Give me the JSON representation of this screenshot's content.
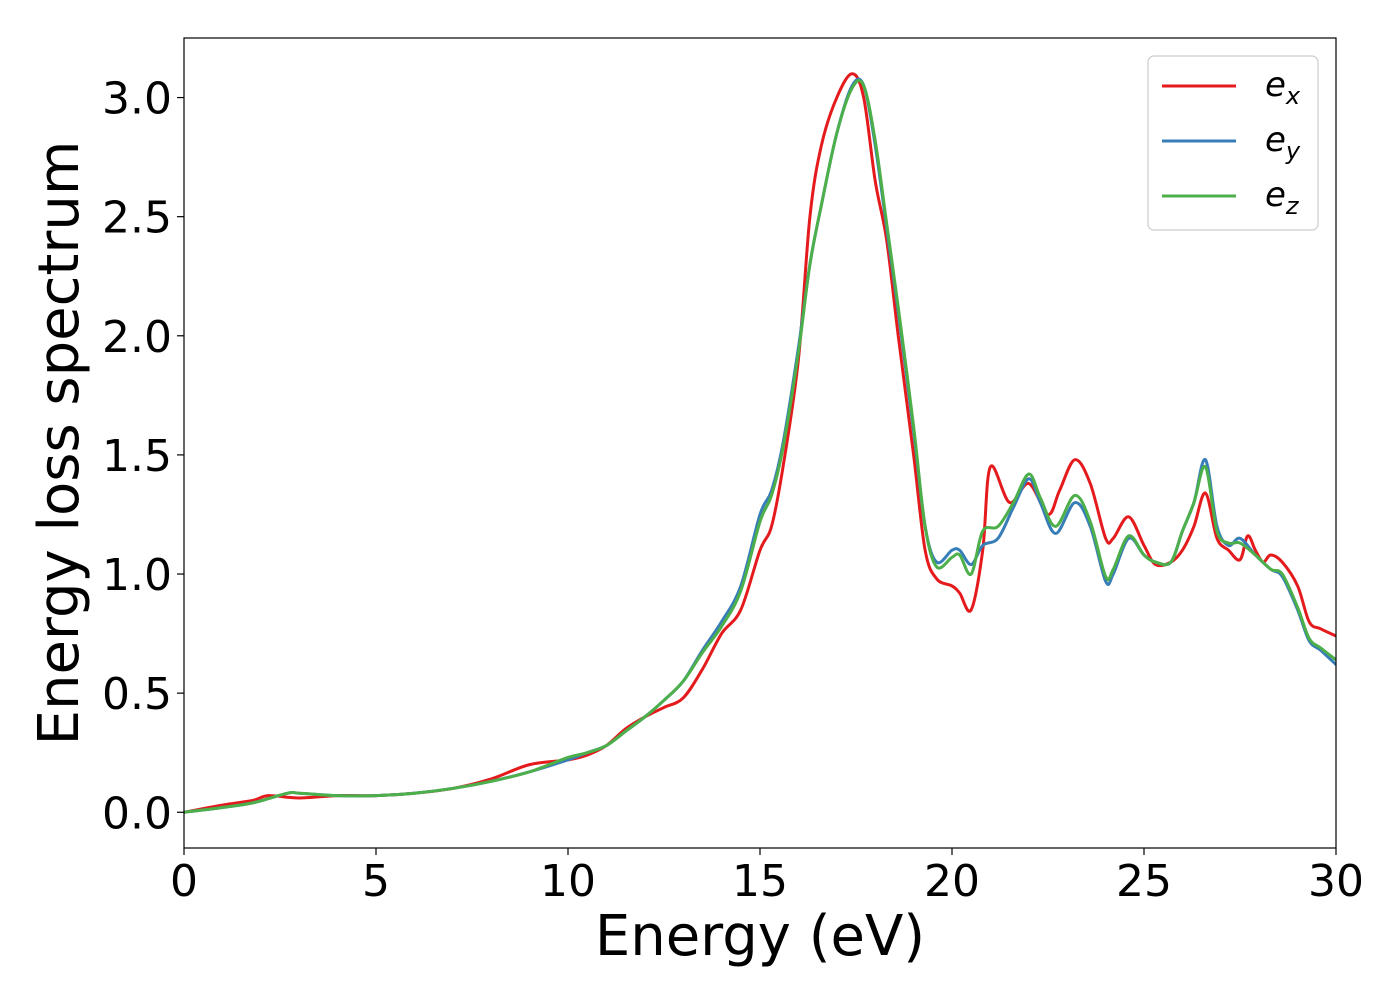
{
  "chart_data": {
    "type": "line",
    "xlabel": "Energy (eV)",
    "ylabel": "Energy loss spectrum",
    "xlim": [
      0,
      30
    ],
    "ylim": [
      -0.15,
      3.25
    ],
    "xticks": [
      0,
      5,
      10,
      15,
      20,
      25,
      30
    ],
    "xtick_labels": [
      "0",
      "5",
      "10",
      "15",
      "20",
      "25",
      "30"
    ],
    "yticks": [
      0.0,
      0.5,
      1.0,
      1.5,
      2.0,
      2.5,
      3.0
    ],
    "ytick_labels": [
      "0.0",
      "0.5",
      "1.0",
      "1.5",
      "2.0",
      "2.5",
      "3.0"
    ],
    "grid": false,
    "legend_position": "top-right",
    "series": [
      {
        "name": "e_x",
        "label_main": "e",
        "label_sub": "x",
        "color": "#e41a1c",
        "x": [
          0,
          1,
          1.8,
          2.2,
          3,
          4,
          5,
          6,
          7,
          8,
          9,
          10,
          10.5,
          11,
          11.5,
          12,
          12.5,
          13,
          13.5,
          14,
          14.5,
          15,
          15.3,
          15.6,
          16,
          16.3,
          16.6,
          17,
          17.4,
          17.7,
          18,
          18.3,
          18.6,
          19,
          19.3,
          19.6,
          20,
          20.2,
          20.5,
          20.8,
          21,
          21.5,
          22,
          22.5,
          22.8,
          23.2,
          23.6,
          24,
          24.2,
          24.6,
          25,
          25.3,
          25.7,
          26,
          26.3,
          26.6,
          26.9,
          27.2,
          27.5,
          27.7,
          27.9,
          28.1,
          28.3,
          28.6,
          29,
          29.3,
          29.6,
          30
        ],
        "y": [
          0.0,
          0.03,
          0.05,
          0.07,
          0.06,
          0.07,
          0.07,
          0.08,
          0.1,
          0.14,
          0.2,
          0.22,
          0.24,
          0.28,
          0.35,
          0.4,
          0.44,
          0.48,
          0.6,
          0.75,
          0.85,
          1.1,
          1.2,
          1.45,
          1.9,
          2.5,
          2.8,
          3.0,
          3.1,
          3.0,
          2.65,
          2.4,
          2.0,
          1.5,
          1.1,
          0.98,
          0.95,
          0.92,
          0.85,
          1.1,
          1.45,
          1.3,
          1.38,
          1.25,
          1.35,
          1.48,
          1.38,
          1.15,
          1.15,
          1.24,
          1.12,
          1.04,
          1.05,
          1.1,
          1.2,
          1.34,
          1.15,
          1.1,
          1.06,
          1.16,
          1.1,
          1.05,
          1.08,
          1.05,
          0.95,
          0.8,
          0.77,
          0.74
        ]
      },
      {
        "name": "e_y",
        "label_main": "e",
        "label_sub": "y",
        "color": "#377eb8",
        "x": [
          0,
          1,
          1.8,
          2.7,
          3,
          4,
          5,
          6,
          7,
          8,
          9,
          10,
          10.5,
          11,
          11.5,
          12,
          12.5,
          13,
          13.5,
          14,
          14.5,
          15,
          15.3,
          15.6,
          16,
          16.3,
          16.6,
          17,
          17.4,
          17.7,
          18,
          18.3,
          18.6,
          19,
          19.3,
          19.6,
          20,
          20.2,
          20.5,
          20.8,
          21.2,
          21.6,
          22,
          22.3,
          22.7,
          23.2,
          23.6,
          24,
          24.2,
          24.6,
          25,
          25.3,
          25.7,
          26,
          26.3,
          26.6,
          26.9,
          27.2,
          27.5,
          27.9,
          28.3,
          28.6,
          29,
          29.3,
          29.6,
          30
        ],
        "y": [
          0.0,
          0.02,
          0.04,
          0.08,
          0.08,
          0.07,
          0.07,
          0.08,
          0.1,
          0.13,
          0.17,
          0.22,
          0.25,
          0.28,
          0.34,
          0.4,
          0.47,
          0.55,
          0.68,
          0.8,
          0.95,
          1.25,
          1.35,
          1.55,
          1.95,
          2.3,
          2.55,
          2.85,
          3.05,
          3.05,
          2.8,
          2.45,
          2.1,
          1.6,
          1.2,
          1.05,
          1.1,
          1.1,
          1.04,
          1.12,
          1.15,
          1.28,
          1.4,
          1.3,
          1.17,
          1.3,
          1.2,
          0.97,
          1.0,
          1.15,
          1.08,
          1.05,
          1.05,
          1.18,
          1.3,
          1.48,
          1.2,
          1.12,
          1.15,
          1.08,
          1.02,
          0.99,
          0.85,
          0.72,
          0.68,
          0.62
        ]
      },
      {
        "name": "e_z",
        "label_main": "e",
        "label_sub": "z",
        "color": "#4daf4a",
        "x": [
          0,
          1,
          1.8,
          2.7,
          3,
          4,
          5,
          6,
          7,
          8,
          9,
          10,
          10.5,
          11,
          11.5,
          12,
          12.5,
          13,
          13.5,
          14,
          14.5,
          15,
          15.3,
          15.6,
          16,
          16.3,
          16.6,
          17,
          17.4,
          17.7,
          18,
          18.3,
          18.6,
          19,
          19.3,
          19.6,
          20,
          20.2,
          20.5,
          20.8,
          21.2,
          21.6,
          22,
          22.3,
          22.7,
          23.2,
          23.6,
          24,
          24.2,
          24.6,
          25,
          25.3,
          25.7,
          26,
          26.3,
          26.6,
          26.9,
          27.2,
          27.5,
          27.9,
          28.3,
          28.6,
          29,
          29.3,
          29.6,
          30
        ],
        "y": [
          0.0,
          0.02,
          0.04,
          0.08,
          0.08,
          0.07,
          0.07,
          0.08,
          0.1,
          0.13,
          0.17,
          0.23,
          0.25,
          0.28,
          0.34,
          0.4,
          0.47,
          0.55,
          0.67,
          0.78,
          0.93,
          1.22,
          1.33,
          1.53,
          1.93,
          2.3,
          2.55,
          2.85,
          3.04,
          3.05,
          2.82,
          2.47,
          2.12,
          1.62,
          1.2,
          1.03,
          1.07,
          1.08,
          1.0,
          1.18,
          1.2,
          1.3,
          1.42,
          1.32,
          1.2,
          1.33,
          1.22,
          0.99,
          1.02,
          1.16,
          1.08,
          1.05,
          1.05,
          1.18,
          1.3,
          1.45,
          1.18,
          1.13,
          1.13,
          1.08,
          1.02,
          1.0,
          0.86,
          0.73,
          0.69,
          0.64
        ]
      }
    ]
  }
}
